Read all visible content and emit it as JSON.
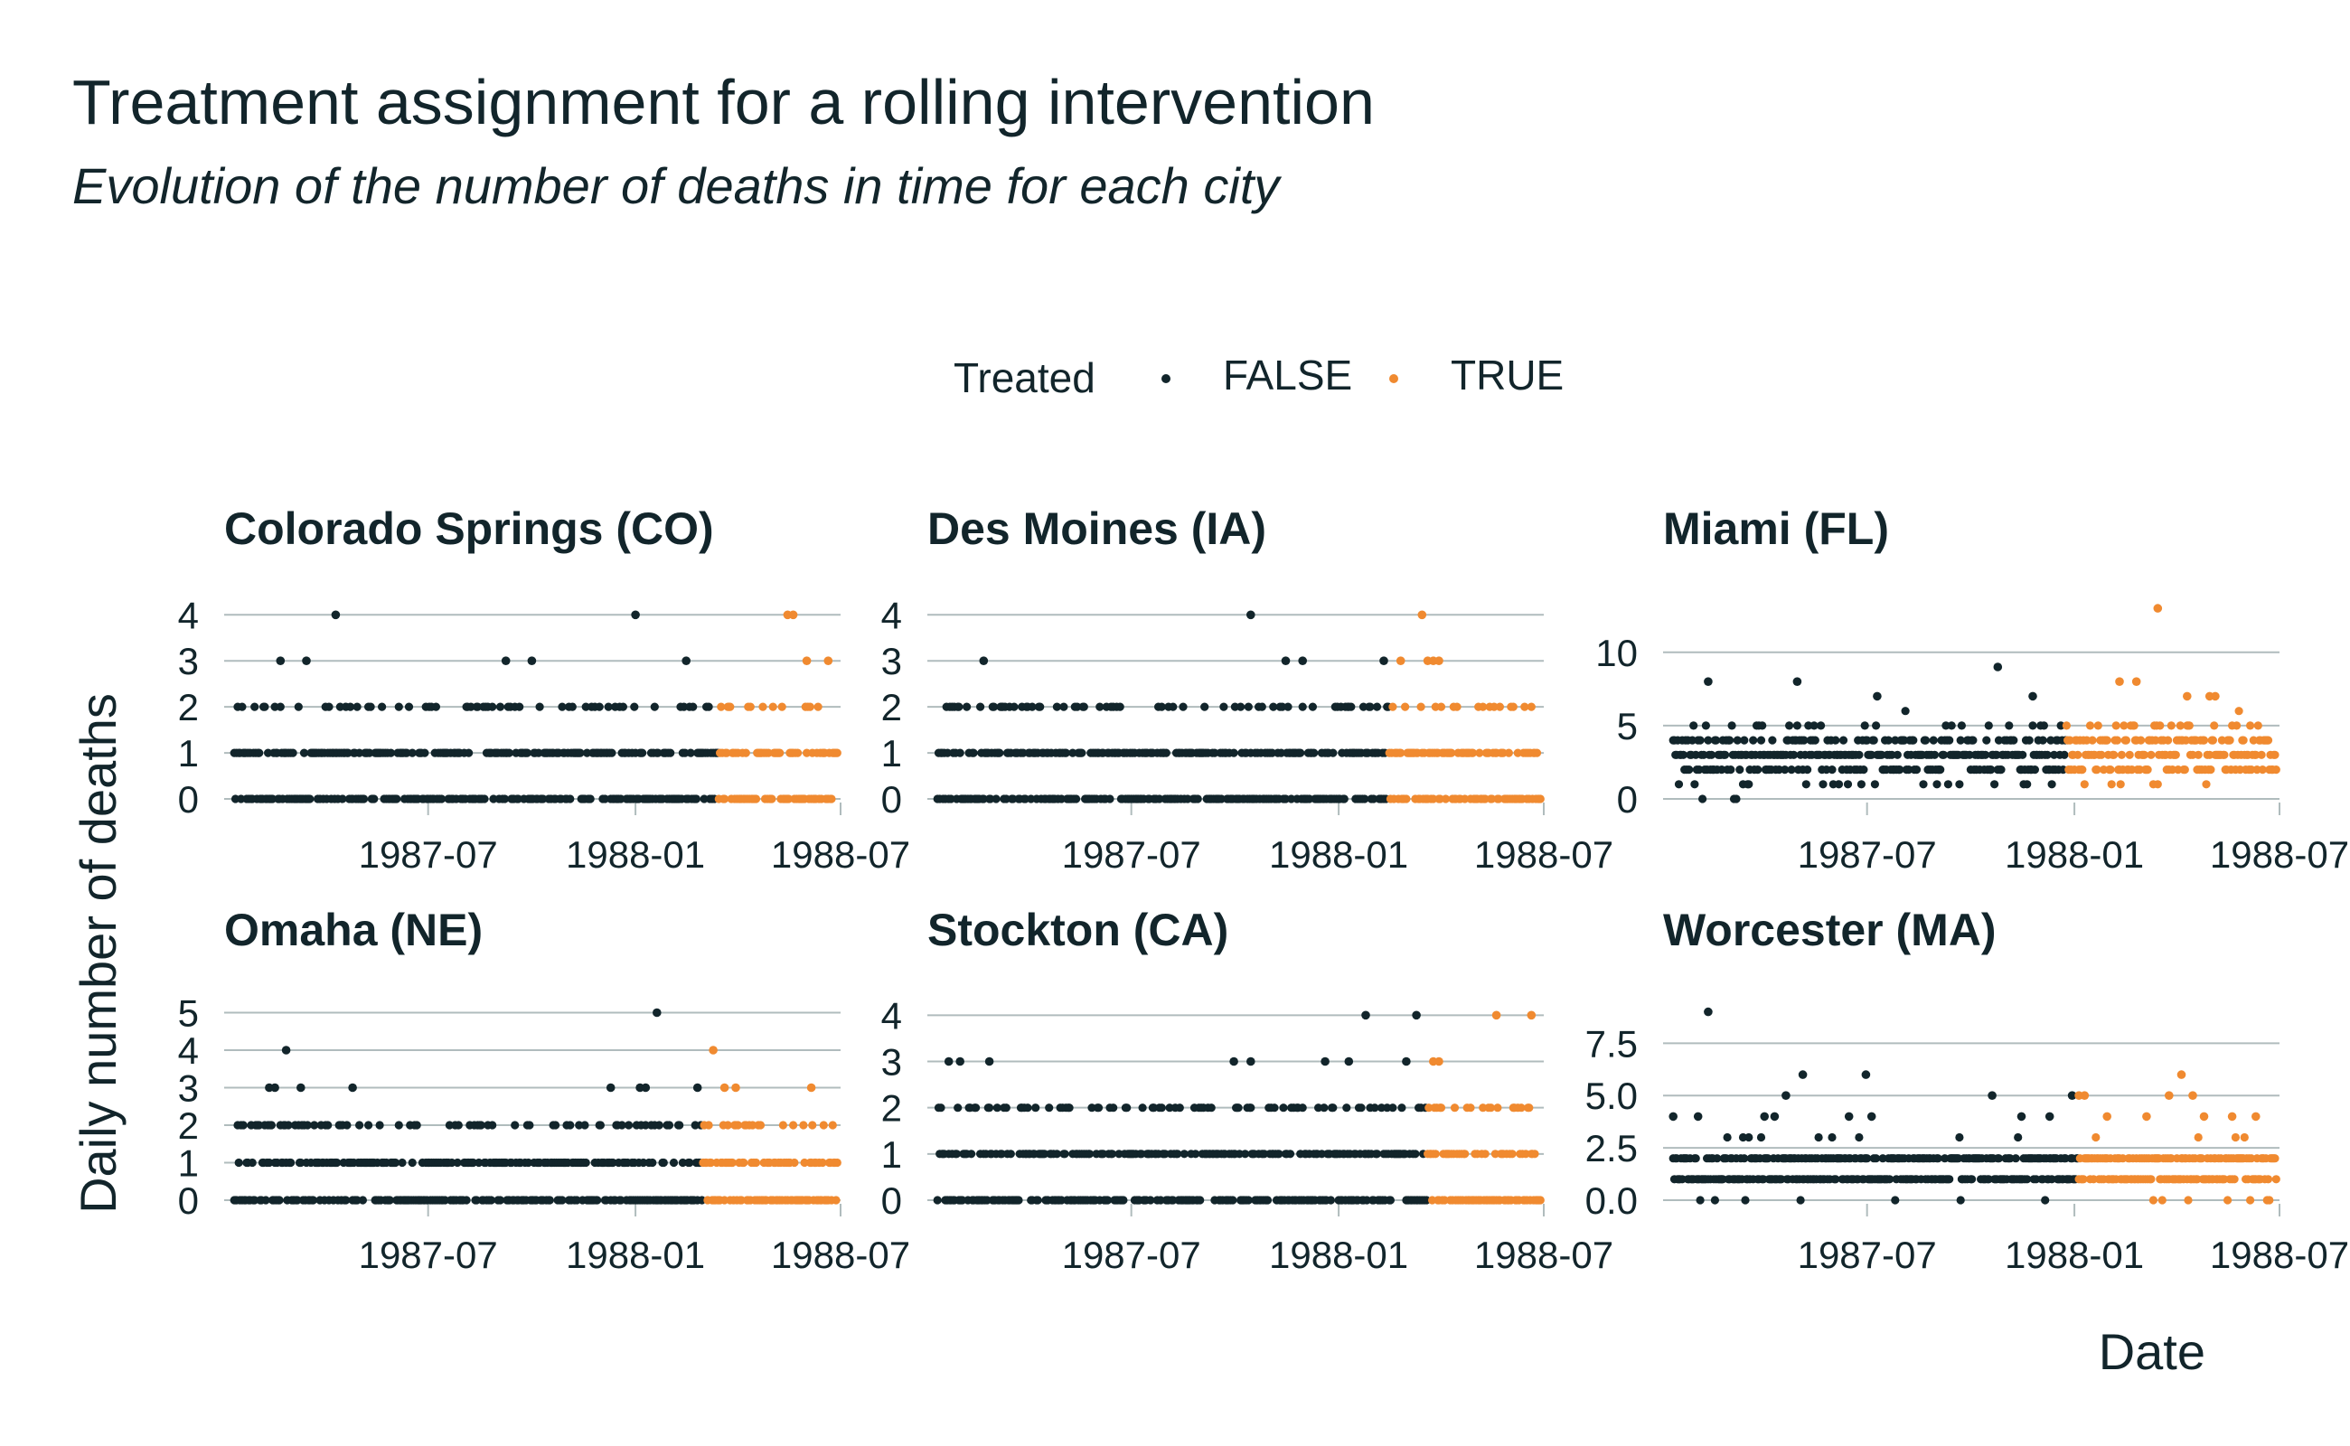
{
  "chart_data": {
    "type": "scatter",
    "title": "Treatment assignment for a rolling intervention",
    "subtitle": "Evolution of the number of deaths in time for each city",
    "xlabel": "Date",
    "ylabel": "Daily number of deaths",
    "legend": {
      "title": "Treated",
      "position": "top",
      "entries": [
        {
          "label": "FALSE",
          "color": "#12252b"
        },
        {
          "label": "TRUE",
          "color": "#f08a30"
        }
      ]
    },
    "x_ticks": [
      "1987-07",
      "1988-01",
      "1988-07"
    ],
    "x_range": [
      "1987-01-01",
      "1988-07-01"
    ],
    "grid": "horizontal",
    "panels": [
      {
        "name": "Colorado Springs (CO)",
        "ylim": [
          0,
          4.3
        ],
        "y_ticks": [
          0,
          1,
          2,
          3,
          4
        ],
        "y_tick_labels": [
          "0",
          "1",
          "2",
          "3",
          "4"
        ],
        "treatment_start": "1988-03-15",
        "max_typical": 2,
        "outliers": [
          [
            "1987-04-10",
            4
          ],
          [
            "1988-01-01",
            4
          ],
          [
            "1988-05-15",
            4
          ],
          [
            "1988-05-20",
            4
          ],
          [
            "1987-02-20",
            3
          ],
          [
            "1987-03-15",
            3
          ],
          [
            "1987-09-08",
            3
          ],
          [
            "1987-10-01",
            3
          ],
          [
            "1988-02-15",
            3
          ],
          [
            "1988-06-01",
            3
          ],
          [
            "1988-06-20",
            3
          ]
        ]
      },
      {
        "name": "Des Moines (IA)",
        "ylim": [
          0,
          4.3
        ],
        "y_ticks": [
          0,
          1,
          2,
          3,
          4
        ],
        "y_tick_labels": [
          "0",
          "1",
          "2",
          "3",
          "4"
        ],
        "treatment_start": "1988-02-15",
        "max_typical": 2,
        "outliers": [
          [
            "1987-10-15",
            4
          ],
          [
            "1988-03-15",
            4
          ],
          [
            "1987-02-20",
            3
          ],
          [
            "1987-11-15",
            3
          ],
          [
            "1987-11-30",
            3
          ],
          [
            "1988-02-10",
            3
          ],
          [
            "1988-02-25",
            3
          ],
          [
            "1988-03-20",
            3
          ],
          [
            "1988-03-25",
            3
          ],
          [
            "1988-03-30",
            3
          ]
        ]
      },
      {
        "name": "Miami (FL)",
        "ylim": [
          0,
          13.5
        ],
        "y_ticks": [
          0,
          5,
          10
        ],
        "y_tick_labels": [
          "0",
          "5",
          "10"
        ],
        "treatment_start": "1987-12-25",
        "max_typical": 6,
        "outliers": [
          [
            "1987-02-10",
            8
          ],
          [
            "1987-04-30",
            8
          ],
          [
            "1987-07-10",
            7
          ],
          [
            "1987-10-25",
            9
          ],
          [
            "1987-11-25",
            7
          ],
          [
            "1988-02-10",
            8
          ],
          [
            "1988-02-25",
            8
          ],
          [
            "1988-03-15",
            13
          ],
          [
            "1988-04-10",
            7
          ],
          [
            "1988-04-30",
            7
          ],
          [
            "1988-05-05",
            7
          ]
        ]
      },
      {
        "name": "Omaha (NE)",
        "ylim": [
          0,
          5.3
        ],
        "y_ticks": [
          0,
          1,
          2,
          3,
          4,
          5
        ],
        "y_tick_labels": [
          "0",
          "1",
          "2",
          "3",
          "4",
          "5"
        ],
        "treatment_start": "1988-03-01",
        "max_typical": 2,
        "outliers": [
          [
            "1988-01-20",
            5
          ],
          [
            "1987-02-25",
            4
          ],
          [
            "1988-03-10",
            4
          ],
          [
            "1987-02-10",
            3
          ],
          [
            "1987-02-15",
            3
          ],
          [
            "1987-03-10",
            3
          ],
          [
            "1987-04-25",
            3
          ],
          [
            "1987-12-10",
            3
          ],
          [
            "1988-01-05",
            3
          ],
          [
            "1988-01-10",
            3
          ],
          [
            "1988-02-25",
            3
          ],
          [
            "1988-03-20",
            3
          ],
          [
            "1988-03-30",
            3
          ],
          [
            "1988-06-05",
            3
          ]
        ]
      },
      {
        "name": "Stockton (CA)",
        "ylim": [
          0,
          4.3
        ],
        "y_ticks": [
          0,
          1,
          2,
          3,
          4
        ],
        "y_tick_labels": [
          "0",
          "1",
          "2",
          "3",
          "4"
        ],
        "treatment_start": "1988-03-20",
        "max_typical": 2,
        "outliers": [
          [
            "1988-01-25",
            4
          ],
          [
            "1988-03-10",
            4
          ],
          [
            "1988-05-20",
            4
          ],
          [
            "1988-06-20",
            4
          ],
          [
            "1987-01-20",
            3
          ],
          [
            "1987-01-30",
            3
          ],
          [
            "1987-02-25",
            3
          ],
          [
            "1987-09-30",
            3
          ],
          [
            "1987-10-15",
            3
          ],
          [
            "1987-12-20",
            3
          ],
          [
            "1988-01-10",
            3
          ],
          [
            "1988-03-01",
            3
          ],
          [
            "1988-03-25",
            3
          ],
          [
            "1988-03-30",
            3
          ]
        ]
      },
      {
        "name": "Worcester (MA)",
        "ylim": [
          0,
          9.5
        ],
        "y_ticks": [
          0,
          2.5,
          5,
          7.5
        ],
        "y_tick_labels": [
          "0.0",
          "2.5",
          "5.0",
          "7.5"
        ],
        "treatment_start": "1988-01-05",
        "max_typical": 3,
        "outliers": [
          [
            "1987-02-10",
            9
          ],
          [
            "1987-04-20",
            5
          ],
          [
            "1987-05-05",
            6
          ],
          [
            "1987-06-30",
            6
          ],
          [
            "1987-10-20",
            5
          ],
          [
            "1987-12-30",
            5
          ],
          [
            "1988-01-05",
            5
          ],
          [
            "1988-01-10",
            5
          ],
          [
            "1988-03-05",
            4
          ],
          [
            "1988-03-25",
            5
          ],
          [
            "1988-04-05",
            6
          ],
          [
            "1988-04-15",
            5
          ],
          [
            "1987-01-10",
            4
          ],
          [
            "1987-02-01",
            4
          ],
          [
            "1987-04-01",
            4
          ],
          [
            "1987-04-10",
            4
          ],
          [
            "1987-06-15",
            4
          ],
          [
            "1987-07-05",
            4
          ],
          [
            "1987-11-15",
            4
          ],
          [
            "1987-12-10",
            4
          ],
          [
            "1988-01-30",
            4
          ],
          [
            "1988-04-25",
            4
          ],
          [
            "1988-05-20",
            4
          ],
          [
            "1988-06-10",
            4
          ]
        ]
      }
    ]
  }
}
